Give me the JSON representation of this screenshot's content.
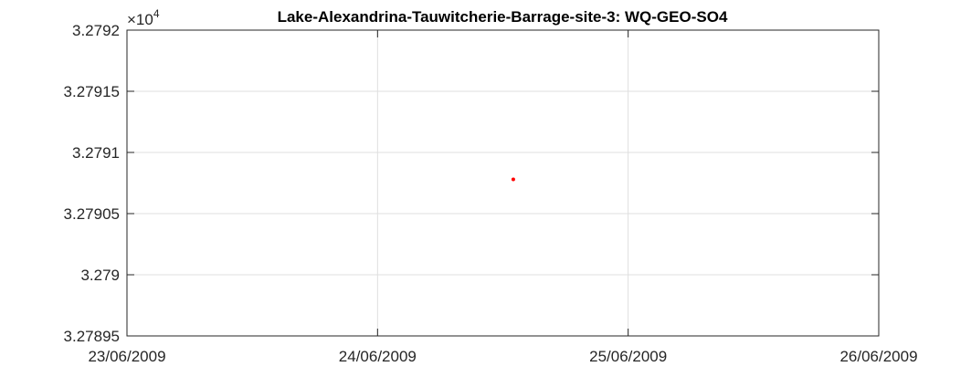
{
  "chart_data": {
    "type": "scatter",
    "title": "Lake-Alexandrina-Tauwitcherie-Barrage-site-3: WQ-GEO-SO4",
    "xlabel": "",
    "ylabel": "",
    "grid": true,
    "x_ticks": [
      "23/06/2009",
      "24/06/2009",
      "25/06/2009",
      "26/06/2009"
    ],
    "xlim": [
      "2009-06-23",
      "2009-06-26"
    ],
    "y_exponent_label": "×10",
    "y_exponent_power": "4",
    "y_ticks": [
      "3.2792",
      "3.27915",
      "3.2791",
      "3.27905",
      "3.279",
      "3.27895"
    ],
    "ylim": [
      3.27895,
      3.2792
    ],
    "points": [
      {
        "x": "2009-06-24T13:00",
        "y": 3.279078
      }
    ],
    "marker_color": "#ff0000"
  }
}
